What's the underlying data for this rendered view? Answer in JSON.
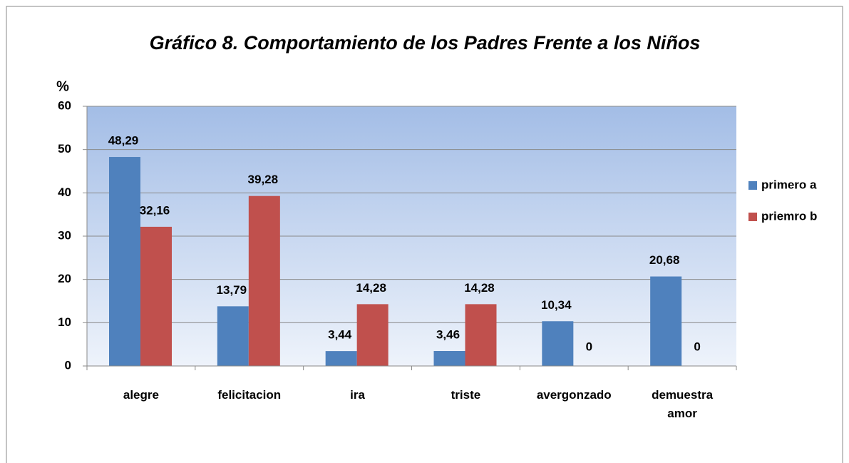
{
  "chart_data": {
    "type": "bar",
    "title": "Gráfico 8. Comportamiento de los Padres Frente a los Niños",
    "y_label": "%",
    "categories": [
      "alegre",
      "felicitacion",
      "ira",
      "triste",
      "avergonzado",
      "demuestra amor"
    ],
    "series": [
      {
        "name": "primero a",
        "color": "#4f81bd",
        "values": [
          48.29,
          13.79,
          3.44,
          3.46,
          10.34,
          20.68
        ],
        "value_labels": [
          "48,29",
          "13,79",
          "3,44",
          "3,46",
          "10,34",
          "20,68"
        ]
      },
      {
        "name": "priemro b",
        "color": "#c0504d",
        "values": [
          32.16,
          39.28,
          14.28,
          14.28,
          0,
          0
        ],
        "value_labels": [
          "32,16",
          "39,28",
          "14,28",
          "14,28",
          "0",
          "0"
        ]
      }
    ],
    "ylim": [
      0,
      60
    ],
    "yticks": [
      0,
      10,
      20,
      30,
      40,
      50,
      60
    ],
    "grid": true,
    "legend": "right"
  }
}
